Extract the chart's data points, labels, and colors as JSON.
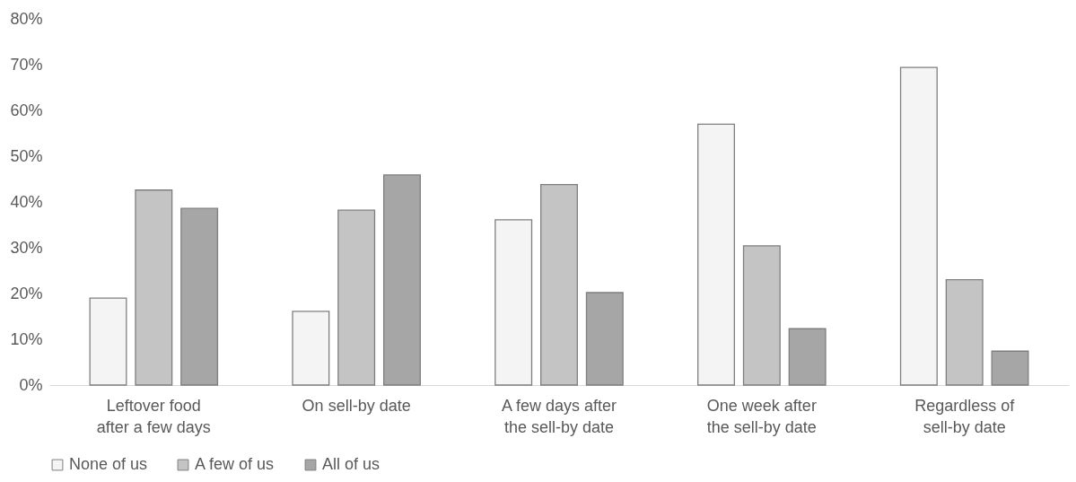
{
  "chart_data": {
    "type": "bar",
    "categories": [
      "Leftover food after a few days",
      "On sell-by date",
      "A few days after the sell-by date",
      "One week after the sell-by date",
      "Regardless of sell-by date"
    ],
    "series": [
      {
        "name": "None of us",
        "color": "#f4f4f4",
        "values": [
          0.19,
          0.161,
          0.361,
          0.57,
          0.694
        ]
      },
      {
        "name": "A few of us",
        "color": "#c4c4c4",
        "values": [
          0.426,
          0.382,
          0.438,
          0.304,
          0.23
        ]
      },
      {
        "name": "All of us",
        "color": "#a6a6a6",
        "values": [
          0.386,
          0.459,
          0.202,
          0.123,
          0.074
        ]
      }
    ],
    "ylim": [
      0,
      0.8
    ],
    "yticks": [
      {
        "value": 0,
        "label": "0%"
      },
      {
        "value": 0.1,
        "label": "10%"
      },
      {
        "value": 0.2,
        "label": "20%"
      },
      {
        "value": 0.3,
        "label": "30%"
      },
      {
        "value": 0.4,
        "label": "40%"
      },
      {
        "value": 0.5,
        "label": "50%"
      },
      {
        "value": 0.6,
        "label": "60%"
      },
      {
        "value": 0.7,
        "label": "70%"
      },
      {
        "value": 0.8,
        "label": "80%"
      }
    ],
    "grid": false,
    "legend": "bottom"
  }
}
